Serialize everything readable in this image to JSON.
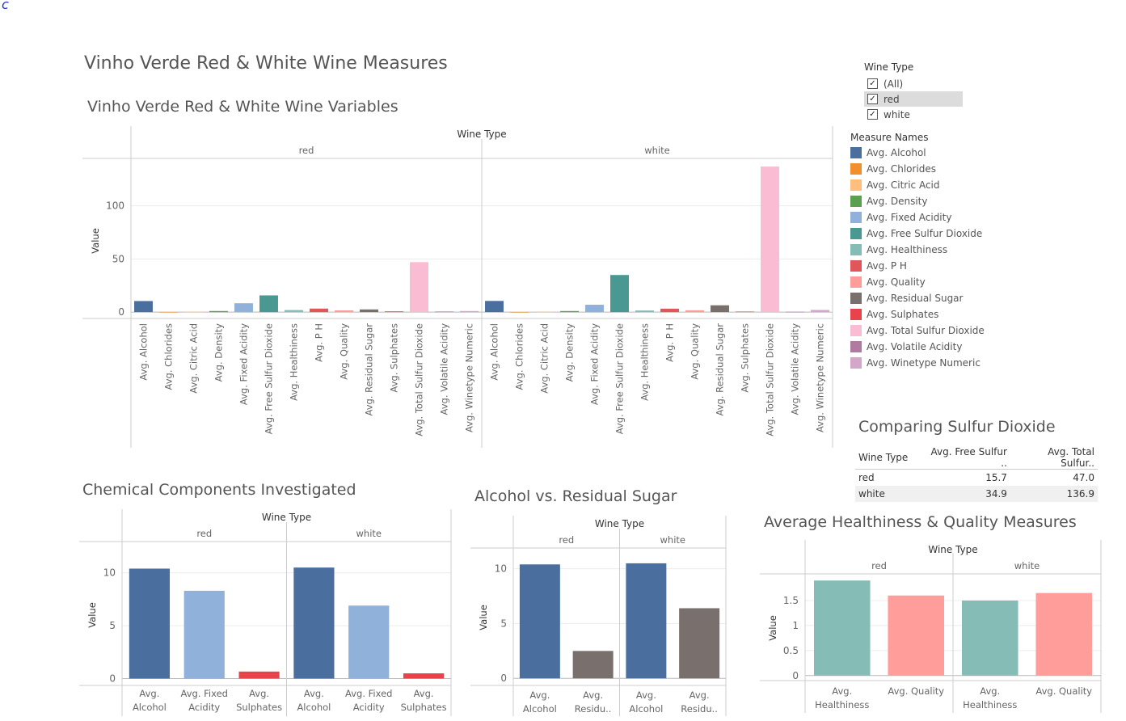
{
  "corner_mark": "c",
  "dashboard_title": "Vinho Verde Red & White Wine Measures",
  "colors": {
    "Avg. Alcohol": "#4a6f9f",
    "Avg. Chlorides": "#f28e2b",
    "Avg. Citric Acid": "#ffbe7d",
    "Avg. Density": "#59a14f",
    "Avg. Fixed Acidity": "#8fb1da",
    "Avg. Free Sulfur Dioxide": "#499892",
    "Avg. Healthiness": "#86bcb6",
    "Avg. P H": "#e15759",
    "Avg. Quality": "#ff9d9a",
    "Avg. Residual Sugar": "#79706e",
    "Avg. Sulphates": "#e8424a",
    "Avg. Total Sulfur Dioxide": "#f9bcd2",
    "Avg. Volatile Acidity": "#b07aa1",
    "Avg. Winetype Numeric": "#d4a6c8"
  },
  "filter": {
    "title": "Wine Type",
    "options": [
      {
        "label": "(All)",
        "checked": true
      },
      {
        "label": "red",
        "checked": true
      },
      {
        "label": "white",
        "checked": true
      }
    ]
  },
  "legend": {
    "title": "Measure Names",
    "items": [
      "Avg. Alcohol",
      "Avg. Chlorides",
      "Avg. Citric Acid",
      "Avg. Density",
      "Avg. Fixed Acidity",
      "Avg. Free Sulfur Dioxide",
      "Avg. Healthiness",
      "Avg. P H",
      "Avg. Quality",
      "Avg. Residual Sugar",
      "Avg. Sulphates",
      "Avg. Total Sulfur Dioxide",
      "Avg. Volatile Acidity",
      "Avg. Winetype Numeric"
    ]
  },
  "sulfur_table": {
    "title": "Comparing Sulfur Dioxide",
    "headers": [
      "Wine Type",
      "Avg. Free Sulfur ..",
      "Avg. Total Sulfur.."
    ],
    "rows": [
      [
        "red",
        "15.7",
        "47.0"
      ],
      [
        "white",
        "34.9",
        "136.9"
      ]
    ]
  },
  "chart_data": [
    {
      "id": "variables",
      "type": "bar",
      "title": "Vinho Verde Red & White Wine Variables",
      "header": "Wine Type",
      "ylabel": "Value",
      "ylim": [
        -6,
        140
      ],
      "yticks": [
        0,
        50,
        100
      ],
      "panes": [
        "red",
        "white"
      ],
      "categories": [
        "Avg. Alcohol",
        "Avg. Chlorides",
        "Avg. Citric Acid",
        "Avg. Density",
        "Avg. Fixed Acidity",
        "Avg. Free Sulfur Dioxide",
        "Avg. Healthiness",
        "Avg. P H",
        "Avg. Quality",
        "Avg. Residual Sugar",
        "Avg. Sulphates",
        "Avg. Total Sulfur Dioxide",
        "Avg. Volatile Acidity",
        "Avg. Winetype Numeric"
      ],
      "series": [
        {
          "name": "red",
          "values": [
            10.4,
            0.09,
            0.27,
            1.0,
            8.3,
            15.7,
            1.9,
            3.3,
            1.6,
            2.5,
            0.66,
            47.0,
            0.53,
            1.0
          ]
        },
        {
          "name": "white",
          "values": [
            10.5,
            0.05,
            0.33,
            1.0,
            6.9,
            34.9,
            1.5,
            3.2,
            1.7,
            6.4,
            0.49,
            136.9,
            0.28,
            2.0
          ]
        }
      ]
    },
    {
      "id": "chemical",
      "type": "bar",
      "title": "Chemical Components Investigated",
      "header": "Wine Type",
      "ylabel": "Value",
      "ylim": [
        -0.5,
        12.5
      ],
      "yticks": [
        0,
        5,
        10
      ],
      "panes": [
        "red",
        "white"
      ],
      "categories": [
        "Avg. Alcohol",
        "Avg. Fixed Acidity",
        "Avg. Sulphates"
      ],
      "category_labels": [
        [
          "Avg.",
          "Alcohol"
        ],
        [
          "Avg. Fixed",
          "Acidity"
        ],
        [
          "Avg.",
          "Sulphates"
        ]
      ],
      "series": [
        {
          "name": "red",
          "values": [
            10.4,
            8.3,
            0.66
          ]
        },
        {
          "name": "white",
          "values": [
            10.5,
            6.9,
            0.49
          ]
        }
      ]
    },
    {
      "id": "alcohol_sugar",
      "type": "bar",
      "title": "Alcohol vs. Residual Sugar",
      "header": "Wine Type",
      "ylabel": "Value",
      "ylim": [
        -0.5,
        11.6
      ],
      "yticks": [
        0,
        5,
        10
      ],
      "panes": [
        "red",
        "white"
      ],
      "categories": [
        "Avg. Alcohol",
        "Avg. Residual Sugar"
      ],
      "category_labels": [
        [
          "Avg.",
          "Alcohol"
        ],
        [
          "Avg.",
          "Residu.."
        ]
      ],
      "series": [
        {
          "name": "red",
          "values": [
            10.4,
            2.5
          ]
        },
        {
          "name": "white",
          "values": [
            10.5,
            6.4
          ]
        }
      ]
    },
    {
      "id": "health_quality",
      "type": "bar",
      "title": "Average Healthiness & Quality Measures",
      "header": "Wine Type",
      "ylabel": "Value",
      "ylim": [
        -0.1,
        2.0
      ],
      "yticks": [
        0,
        0.5,
        1,
        1.5
      ],
      "panes": [
        "red",
        "white"
      ],
      "categories": [
        "Avg. Healthiness",
        "Avg. Quality"
      ],
      "category_labels": [
        [
          "Avg.",
          "Healthiness"
        ],
        [
          "Avg. Quality"
        ]
      ],
      "series": [
        {
          "name": "red",
          "values": [
            1.9,
            1.6
          ]
        },
        {
          "name": "white",
          "values": [
            1.5,
            1.65
          ]
        }
      ]
    }
  ]
}
